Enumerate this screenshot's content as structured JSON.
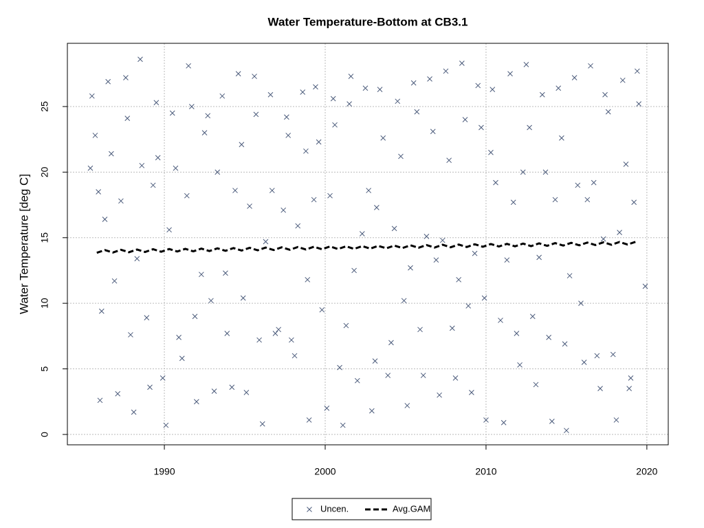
{
  "chart_data": {
    "type": "scatter",
    "title": "Water Temperature-Bottom at CB3.1",
    "y_label": "Water Temperature [deg C]",
    "xlim": [
      1983.97,
      2021.33
    ],
    "ylim": [
      -0.79,
      29.82
    ],
    "xticks": [
      1990,
      2000,
      2010,
      2020
    ],
    "yticks": [
      0,
      5,
      10,
      15,
      20,
      25
    ],
    "grid": true,
    "legend": "bottom",
    "series": [
      {
        "name": "Uncen.",
        "type": "scatter",
        "color": "#4a5a7a",
        "x": [
          1985.4,
          1985.5,
          1985.7,
          1985.9,
          1986.0,
          1986.1,
          1986.3,
          1986.5,
          1986.7,
          1986.9,
          1987.1,
          1987.3,
          1987.6,
          1987.7,
          1987.9,
          1988.1,
          1988.3,
          1988.5,
          1988.6,
          1988.9,
          1989.1,
          1989.3,
          1989.5,
          1989.6,
          1989.9,
          1990.1,
          1990.3,
          1990.5,
          1990.7,
          1990.9,
          1991.1,
          1991.4,
          1991.5,
          1991.7,
          1991.9,
          1992.0,
          1992.3,
          1992.5,
          1992.7,
          1992.9,
          1993.1,
          1993.3,
          1993.6,
          1993.8,
          1993.9,
          1994.2,
          1994.4,
          1994.6,
          1994.8,
          1994.9,
          1995.1,
          1995.3,
          1995.6,
          1995.7,
          1995.9,
          1996.1,
          1996.3,
          1996.6,
          1996.7,
          1996.9,
          1997.1,
          1997.4,
          1997.6,
          1997.7,
          1997.9,
          1998.1,
          1998.3,
          1998.6,
          1998.8,
          1998.9,
          1999.0,
          1999.3,
          1999.4,
          1999.6,
          1999.8,
          2000.1,
          2000.3,
          2000.5,
          2000.6,
          2000.9,
          2001.1,
          2001.3,
          2001.5,
          2001.6,
          2001.8,
          2002.0,
          2002.3,
          2002.5,
          2002.7,
          2002.9,
          2003.1,
          2003.2,
          2003.4,
          2003.6,
          2003.9,
          2004.1,
          2004.3,
          2004.5,
          2004.7,
          2004.9,
          2005.1,
          2005.3,
          2005.5,
          2005.7,
          2005.9,
          2006.1,
          2006.3,
          2006.5,
          2006.7,
          2006.9,
          2007.1,
          2007.3,
          2007.5,
          2007.7,
          2007.9,
          2008.1,
          2008.3,
          2008.5,
          2008.7,
          2008.9,
          2009.1,
          2009.3,
          2009.5,
          2009.7,
          2009.9,
          2010.0,
          2010.3,
          2010.4,
          2010.6,
          2010.9,
          2011.1,
          2011.3,
          2011.5,
          2011.7,
          2011.9,
          2012.1,
          2012.3,
          2012.5,
          2012.7,
          2012.9,
          2013.1,
          2013.3,
          2013.5,
          2013.7,
          2013.9,
          2014.1,
          2014.3,
          2014.5,
          2014.7,
          2014.9,
          2015.0,
          2015.2,
          2015.5,
          2015.7,
          2015.9,
          2016.1,
          2016.3,
          2016.5,
          2016.7,
          2016.9,
          2017.1,
          2017.3,
          2017.4,
          2017.6,
          2017.9,
          2018.1,
          2018.3,
          2018.5,
          2018.7,
          2018.9,
          2019.0,
          2019.2,
          2019.4,
          2019.5,
          2019.9
        ],
        "values": [
          20.3,
          25.8,
          22.8,
          18.5,
          2.6,
          9.4,
          16.4,
          26.9,
          21.4,
          11.7,
          3.1,
          17.8,
          27.2,
          24.1,
          7.6,
          1.7,
          13.4,
          28.6,
          20.5,
          8.9,
          3.6,
          19.0,
          25.3,
          21.1,
          4.3,
          0.7,
          15.6,
          24.5,
          20.3,
          7.4,
          5.8,
          18.2,
          28.1,
          25.0,
          9.0,
          2.5,
          12.2,
          23.0,
          24.3,
          10.2,
          3.3,
          20.0,
          25.8,
          12.3,
          7.7,
          3.6,
          18.6,
          27.5,
          22.1,
          10.4,
          3.2,
          17.4,
          27.3,
          24.4,
          7.2,
          0.8,
          14.7,
          25.9,
          18.6,
          7.7,
          8.0,
          17.1,
          24.2,
          22.8,
          7.2,
          6.0,
          15.9,
          26.1,
          21.6,
          11.8,
          1.1,
          17.9,
          26.5,
          22.3,
          9.5,
          2.0,
          18.2,
          25.6,
          23.6,
          5.1,
          0.7,
          8.3,
          25.2,
          27.3,
          12.5,
          4.1,
          15.3,
          26.4,
          18.6,
          1.8,
          5.6,
          17.3,
          26.3,
          22.6,
          4.5,
          7.0,
          15.7,
          25.4,
          21.2,
          10.2,
          2.2,
          12.7,
          26.8,
          24.6,
          8.0,
          4.5,
          15.1,
          27.1,
          23.1,
          13.3,
          3.0,
          14.8,
          27.7,
          20.9,
          8.1,
          4.3,
          11.8,
          28.3,
          24.0,
          9.8,
          3.2,
          13.8,
          26.6,
          23.4,
          10.4,
          1.1,
          21.5,
          26.3,
          19.2,
          8.7,
          0.9,
          13.3,
          27.5,
          17.7,
          7.7,
          5.3,
          20.0,
          28.2,
          23.4,
          9.0,
          3.8,
          13.5,
          25.9,
          20.0,
          7.4,
          1.0,
          17.9,
          26.4,
          22.6,
          6.9,
          0.3,
          12.1,
          27.2,
          19.0,
          10.0,
          5.5,
          17.9,
          28.1,
          19.2,
          6.0,
          3.5,
          14.9,
          25.9,
          24.6,
          6.1,
          1.1,
          15.4,
          27.0,
          20.6,
          3.5,
          4.3,
          17.7,
          27.7,
          25.2,
          11.3
        ]
      },
      {
        "name": "Avg.GAM",
        "type": "line",
        "color": "#000000",
        "x": [
          1985.8,
          1986.3,
          1986.8,
          1987.3,
          1987.8,
          1988.3,
          1988.8,
          1989.3,
          1989.8,
          1990.3,
          1990.8,
          1991.3,
          1991.8,
          1992.3,
          1992.8,
          1993.3,
          1993.8,
          1994.3,
          1994.8,
          1995.3,
          1995.8,
          1996.3,
          1996.8,
          1997.3,
          1997.8,
          1998.3,
          1998.8,
          1999.3,
          1999.8,
          2000.3,
          2000.8,
          2001.3,
          2001.8,
          2002.3,
          2002.8,
          2003.3,
          2003.8,
          2004.3,
          2004.8,
          2005.3,
          2005.8,
          2006.3,
          2006.8,
          2007.3,
          2007.8,
          2008.3,
          2008.8,
          2009.3,
          2009.8,
          2010.3,
          2010.8,
          2011.3,
          2011.8,
          2012.3,
          2012.8,
          2013.3,
          2013.8,
          2014.3,
          2014.8,
          2015.3,
          2015.8,
          2016.3,
          2016.8,
          2017.3,
          2017.8,
          2018.3,
          2018.8,
          2019.3
        ],
        "values": [
          13.85,
          14.06,
          13.87,
          14.08,
          13.89,
          14.1,
          13.91,
          14.12,
          13.93,
          14.14,
          13.95,
          14.15,
          13.96,
          14.17,
          13.98,
          14.19,
          14.0,
          14.21,
          14.02,
          14.23,
          14.04,
          14.25,
          14.06,
          14.27,
          14.08,
          14.29,
          14.1,
          14.31,
          14.12,
          14.33,
          14.14,
          14.34,
          14.15,
          14.36,
          14.17,
          14.38,
          14.19,
          14.4,
          14.21,
          14.42,
          14.23,
          14.44,
          14.25,
          14.46,
          14.27,
          14.48,
          14.29,
          14.5,
          14.31,
          14.52,
          14.33,
          14.53,
          14.34,
          14.55,
          14.36,
          14.57,
          14.38,
          14.59,
          14.4,
          14.61,
          14.42,
          14.63,
          14.44,
          14.65,
          14.46,
          14.67,
          14.48,
          14.69
        ]
      }
    ]
  }
}
